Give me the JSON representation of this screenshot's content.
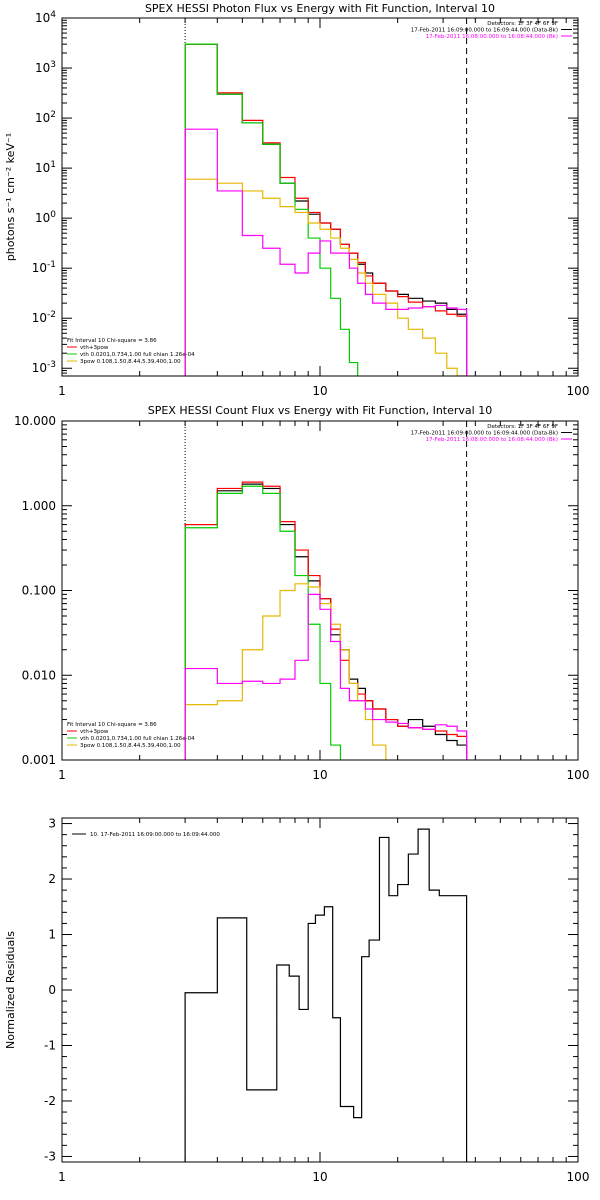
{
  "chart_data": [
    {
      "type": "line",
      "title": "SPEX HESSI Photon Flux vs Energy with Fit Function, Interval 10",
      "xlabel": "",
      "ylabel": "photons s⁻¹ cm⁻² keV⁻¹",
      "x_scale": "log",
      "y_scale": "log",
      "xlim": [
        1,
        100
      ],
      "ylim": [
        0.0007,
        10000
      ],
      "x_ticks": [
        "1",
        "10",
        "100"
      ],
      "y_ticks": [
        {
          "value": 10000,
          "base": "10",
          "exp": "4"
        },
        {
          "value": 1000,
          "base": "10",
          "exp": "3"
        },
        {
          "value": 100,
          "base": "10",
          "exp": "2"
        },
        {
          "value": 10,
          "base": "10",
          "exp": "1"
        },
        {
          "value": 1,
          "base": "10",
          "exp": "0"
        },
        {
          "value": 0.1,
          "base": "10",
          "exp": "-1"
        },
        {
          "value": 0.01,
          "base": "10",
          "exp": "-2"
        },
        {
          "value": 0.001,
          "base": "10",
          "exp": "-3"
        }
      ],
      "vlines": [
        {
          "x": 3.0,
          "style": "dotted"
        },
        {
          "x": 37.0,
          "style": "dashed"
        }
      ],
      "legend_top_right": [
        {
          "text": "Detectors: 1F 3F 4F 6F 9F",
          "color": "#000000"
        },
        {
          "text": "17-Feb-2011 16:09:00.000 to 16:09:44.000 (Data-Bk)",
          "color": "#000000"
        },
        {
          "text": "17-Feb-2011 16:08:00.000 to 16:08:44.000 (Bk)",
          "color": "#ff00ff"
        }
      ],
      "legend_bottom_left": [
        {
          "text": "Fit Interval 10   Chi-square = 3.86",
          "color": "#000000"
        },
        {
          "text": "vth+3pow",
          "color": "#ff0000"
        },
        {
          "text": "vth 0.0201,0.734,1.00  full chian 1.26e-04",
          "color": "#00cc00"
        },
        {
          "text": "3pow 0.108,1.50,8.44,5.39,400,1.00",
          "color": "#e6b800"
        }
      ],
      "edges": [
        3.0,
        4.0,
        5.0,
        6.0,
        7.0,
        8.0,
        9.0,
        10.0,
        11.0,
        12.0,
        13.0,
        14.0,
        15.0,
        16.0,
        18.0,
        20.0,
        22.0,
        25.0,
        28.0,
        31.0,
        34.0,
        37.0
      ],
      "series": [
        {
          "name": "Data-Bk",
          "color": "#000000",
          "values": [
            3000,
            300,
            80,
            30,
            5,
            2.2,
            1.2,
            0.8,
            0.6,
            0.3,
            0.2,
            0.12,
            0.08,
            0.05,
            0.035,
            0.03,
            0.025,
            0.022,
            0.02,
            0.015,
            0.012
          ]
        },
        {
          "name": "vth+3pow",
          "color": "#ff0000",
          "values": [
            3000,
            320,
            90,
            32,
            6.5,
            2.5,
            1.3,
            0.8,
            0.6,
            0.3,
            0.2,
            0.13,
            0.07,
            0.05,
            0.035,
            0.027,
            0.021,
            0.017,
            0.014,
            0.012,
            0.011
          ]
        },
        {
          "name": "vth",
          "color": "#00cc00",
          "values": [
            3000,
            300,
            80,
            30,
            5,
            1.5,
            0.4,
            0.1,
            0.025,
            0.006,
            0.0013
          ]
        },
        {
          "name": "3pow",
          "color": "#e6b800",
          "values": [
            6,
            5,
            3.5,
            2.5,
            1.7,
            1.3,
            0.8,
            0.6,
            0.4,
            0.25,
            0.15,
            0.08,
            0.05,
            0.03,
            0.02,
            0.01,
            0.006,
            0.004,
            0.002,
            0.001,
            0.0007
          ]
        },
        {
          "name": "Bk",
          "color": "#ff00ff",
          "values": [
            60,
            3.5,
            0.45,
            0.25,
            0.12,
            0.08,
            0.2,
            0.35,
            0.2,
            0.2,
            0.1,
            0.05,
            0.03,
            0.02,
            0.015,
            0.015,
            0.016,
            0.017,
            0.018,
            0.016,
            0.015
          ]
        }
      ]
    },
    {
      "type": "line",
      "title": "SPEX HESSI Count Flux vs Energy with Fit Function, Interval 10",
      "xlabel": "",
      "ylabel": "",
      "x_scale": "log",
      "y_scale": "log",
      "xlim": [
        1,
        100
      ],
      "ylim": [
        0.001,
        10
      ],
      "x_ticks": [
        "1",
        "10",
        "100"
      ],
      "y_ticks": [
        {
          "value": 10,
          "label": "10.000"
        },
        {
          "value": 1,
          "label": "1.000"
        },
        {
          "value": 0.1,
          "label": "0.100"
        },
        {
          "value": 0.01,
          "label": "0.010"
        },
        {
          "value": 0.001,
          "label": "0.001"
        }
      ],
      "vlines": [
        {
          "x": 3.0,
          "style": "dotted"
        },
        {
          "x": 37.0,
          "style": "dashed"
        }
      ],
      "legend_top_right": [
        {
          "text": "Detectors: 1F 3F 4F 6F 9F",
          "color": "#000000"
        },
        {
          "text": "17-Feb-2011 16:09:00.000 to 16:09:44.000 (Data-Bk)",
          "color": "#000000"
        },
        {
          "text": "17-Feb-2011 16:08:00.000 to 16:08:44.000 (Bk)",
          "color": "#ff00ff"
        }
      ],
      "legend_bottom_left": [
        {
          "text": "Fit Interval 10   Chi-square = 3.86",
          "color": "#000000"
        },
        {
          "text": "vth+3pow",
          "color": "#ff0000"
        },
        {
          "text": "vth 0.0201,0.734,1.00  full chian 1.26e-04",
          "color": "#00cc00"
        },
        {
          "text": "3pow 0.108,1.50,8.44,5.39,400,1.00",
          "color": "#e6b800"
        }
      ],
      "edges": [
        3.0,
        4.0,
        5.0,
        6.0,
        7.0,
        8.0,
        9.0,
        10.0,
        11.0,
        12.0,
        13.0,
        14.0,
        15.0,
        16.0,
        18.0,
        20.0,
        22.0,
        25.0,
        28.0,
        31.0,
        34.0,
        37.0
      ],
      "series": [
        {
          "name": "Data-Bk",
          "color": "#000000",
          "values": [
            0.6,
            1.5,
            1.8,
            1.6,
            0.6,
            0.25,
            0.13,
            0.08,
            0.03,
            0.02,
            0.009,
            0.007,
            0.005,
            0.004,
            0.003,
            0.0025,
            0.003,
            0.0025,
            0.002,
            0.0017,
            0.0015
          ]
        },
        {
          "name": "vth+3pow",
          "color": "#ff0000",
          "values": [
            0.6,
            1.6,
            1.9,
            1.7,
            0.65,
            0.3,
            0.15,
            0.08,
            0.035,
            0.015,
            0.008,
            0.006,
            0.005,
            0.004,
            0.003,
            0.0025,
            0.0024,
            0.0023,
            0.0022,
            0.002,
            0.0019
          ]
        },
        {
          "name": "vth",
          "color": "#00cc00",
          "values": [
            0.55,
            1.4,
            1.7,
            1.4,
            0.5,
            0.15,
            0.04,
            0.008,
            0.0015,
            0.0009,
            0.0009
          ]
        },
        {
          "name": "3pow",
          "color": "#e6b800",
          "values": [
            0.0045,
            0.005,
            0.02,
            0.05,
            0.1,
            0.12,
            0.11,
            0.07,
            0.04,
            0.02,
            0.008,
            0.005,
            0.003,
            0.0015,
            0.0009
          ]
        },
        {
          "name": "Bk",
          "color": "#ff00ff",
          "values": [
            0.012,
            0.008,
            0.0085,
            0.008,
            0.009,
            0.015,
            0.09,
            0.06,
            0.025,
            0.007,
            0.005,
            0.005,
            0.004,
            0.003,
            0.0028,
            0.0027,
            0.0024,
            0.0023,
            0.0026,
            0.0025,
            0.0022
          ]
        }
      ]
    },
    {
      "type": "line",
      "title": "",
      "xlabel": "",
      "ylabel": "Normalized Residuals",
      "x_scale": "log",
      "y_scale": "linear",
      "xlim": [
        1,
        100
      ],
      "ylim": [
        -3.1,
        3.1
      ],
      "x_ticks": [
        "1",
        "10",
        "100"
      ],
      "y_ticks": [
        {
          "value": 3,
          "label": "3"
        },
        {
          "value": 2,
          "label": "2"
        },
        {
          "value": 1,
          "label": "1"
        },
        {
          "value": 0,
          "label": "0"
        },
        {
          "value": -1,
          "label": "-1"
        },
        {
          "value": -2,
          "label": "-2"
        },
        {
          "value": -3,
          "label": "-3"
        }
      ],
      "legend_top_left": [
        {
          "text": "10. 17-Feb-2011 16:09:00.000 to 16:09:44.000",
          "color": "#000000"
        }
      ],
      "edges": [
        3.0,
        3.5,
        4.0,
        4.6,
        5.2,
        6.0,
        6.8,
        7.6,
        8.3,
        9.0,
        9.6,
        10.4,
        11.2,
        12.0,
        13.5,
        14.5,
        15.5,
        17.0,
        18.5,
        20.0,
        22.0,
        24.0,
        26.5,
        29.0,
        31.0,
        34.0,
        37.0
      ],
      "series": [
        {
          "name": "10. 17-Feb-2011 16:09:00.000 to 16:09:44.000",
          "color": "#000000",
          "values": [
            -0.05,
            -0.05,
            1.3,
            1.3,
            -1.8,
            -1.8,
            0.45,
            0.25,
            -0.35,
            1.2,
            1.35,
            1.5,
            -0.5,
            -2.1,
            -2.3,
            0.6,
            0.9,
            2.75,
            1.7,
            1.9,
            2.45,
            2.9,
            1.8,
            1.7,
            1.7,
            1.7
          ]
        }
      ]
    }
  ]
}
